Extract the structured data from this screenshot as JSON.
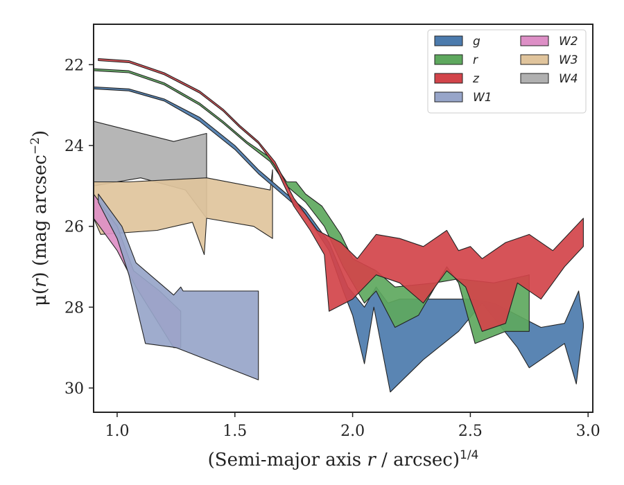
{
  "chart_data": {
    "type": "area",
    "xlabel": "(Semi-major axis r / arcsec)^1/4",
    "xlabel_parts": {
      "pre": "(Semi-major axis ",
      "var": "r",
      "post": " / arcsec)",
      "sup": "1/4"
    },
    "ylabel": "μ(r) (mag arcsec^−2)",
    "ylabel_parts": {
      "pre": "μ(",
      "var": "r",
      "mid": ") (mag arcsec",
      "sup": "−2",
      "post": ")"
    },
    "xlim": [
      0.9,
      3.02
    ],
    "ylim": [
      30.6,
      21.0
    ],
    "y_inverted": true,
    "xticks": [
      1.0,
      1.5,
      2.0,
      2.5,
      3.0
    ],
    "xtick_labels": [
      "1.0",
      "1.5",
      "2.0",
      "2.5",
      "3.0"
    ],
    "yticks": [
      22,
      24,
      26,
      28,
      30
    ],
    "ytick_labels": [
      "22",
      "24",
      "26",
      "28",
      "30"
    ],
    "grid": false,
    "legend_position": "top-right",
    "legend_columns": 2,
    "series": [
      {
        "name": "W4",
        "color": "#b0b0b0",
        "upper": [
          [
            0.9,
            23.4
          ],
          [
            1.24,
            23.9
          ],
          [
            1.38,
            23.7
          ]
        ],
        "lower": [
          [
            0.9,
            25.0
          ],
          [
            1.1,
            24.8
          ],
          [
            1.29,
            25.1
          ],
          [
            1.38,
            25.8
          ]
        ]
      },
      {
        "name": "W3",
        "color": "#e0c49c",
        "upper": [
          [
            0.9,
            24.9
          ],
          [
            1.05,
            24.9
          ],
          [
            1.38,
            24.8
          ],
          [
            1.65,
            25.1
          ],
          [
            1.66,
            24.6
          ]
        ],
        "lower": [
          [
            0.9,
            25.8
          ],
          [
            0.93,
            26.2
          ],
          [
            1.17,
            26.1
          ],
          [
            1.32,
            25.9
          ],
          [
            1.37,
            26.7
          ],
          [
            1.38,
            25.8
          ],
          [
            1.58,
            26.0
          ],
          [
            1.66,
            26.3
          ]
        ]
      },
      {
        "name": "W2",
        "color": "#dd8fc6",
        "upper": [
          [
            0.9,
            25.2
          ],
          [
            1.0,
            26.0
          ],
          [
            1.07,
            27.1
          ],
          [
            1.18,
            27.6
          ],
          [
            1.27,
            28.1
          ]
        ],
        "lower": [
          [
            0.9,
            25.8
          ],
          [
            1.0,
            26.6
          ],
          [
            1.08,
            27.5
          ],
          [
            1.24,
            29.0
          ],
          [
            1.27,
            29.0
          ]
        ]
      },
      {
        "name": "W1",
        "color": "#97a5c9",
        "upper": [
          [
            0.92,
            25.2
          ],
          [
            1.02,
            26.0
          ],
          [
            1.08,
            26.9
          ],
          [
            1.24,
            27.7
          ],
          [
            1.27,
            27.5
          ],
          [
            1.28,
            27.6
          ],
          [
            1.6,
            27.6
          ]
        ],
        "lower": [
          [
            0.92,
            25.4
          ],
          [
            1.0,
            26.3
          ],
          [
            1.05,
            27.2
          ],
          [
            1.12,
            28.9
          ],
          [
            1.25,
            29.0
          ],
          [
            1.6,
            29.8
          ]
        ]
      },
      {
        "name": "g",
        "color": "#4c7bad",
        "upper": [
          [
            0.9,
            22.55
          ],
          [
            1.05,
            22.6
          ],
          [
            1.2,
            22.85
          ],
          [
            1.35,
            23.3
          ],
          [
            1.5,
            24.0
          ],
          [
            1.6,
            24.6
          ],
          [
            1.7,
            25.1
          ],
          [
            1.8,
            25.6
          ],
          [
            1.9,
            26.4
          ],
          [
            1.98,
            27.5
          ],
          [
            2.05,
            28.0
          ],
          [
            2.1,
            27.5
          ],
          [
            2.15,
            27.9
          ],
          [
            2.2,
            27.8
          ],
          [
            2.4,
            27.8
          ],
          [
            2.5,
            27.8
          ],
          [
            2.6,
            27.9
          ],
          [
            2.7,
            28.2
          ],
          [
            2.8,
            28.5
          ],
          [
            2.9,
            28.4
          ],
          [
            2.96,
            27.6
          ],
          [
            2.98,
            28.4
          ]
        ],
        "lower": [
          [
            0.9,
            22.6
          ],
          [
            1.05,
            22.65
          ],
          [
            1.2,
            22.9
          ],
          [
            1.35,
            23.4
          ],
          [
            1.5,
            24.1
          ],
          [
            1.6,
            24.7
          ],
          [
            1.7,
            25.2
          ],
          [
            1.8,
            25.7
          ],
          [
            1.9,
            26.6
          ],
          [
            1.96,
            27.6
          ],
          [
            2.0,
            28.2
          ],
          [
            2.05,
            29.4
          ],
          [
            2.09,
            28.0
          ],
          [
            2.16,
            30.1
          ],
          [
            2.3,
            29.3
          ],
          [
            2.45,
            28.6
          ],
          [
            2.55,
            27.9
          ],
          [
            2.7,
            29.0
          ],
          [
            2.75,
            29.5
          ],
          [
            2.9,
            28.9
          ],
          [
            2.95,
            29.9
          ],
          [
            2.98,
            28.5
          ]
        ]
      },
      {
        "name": "r",
        "color": "#5ea85e",
        "upper": [
          [
            0.9,
            22.1
          ],
          [
            1.05,
            22.15
          ],
          [
            1.2,
            22.45
          ],
          [
            1.35,
            22.95
          ],
          [
            1.45,
            23.4
          ],
          [
            1.55,
            23.9
          ],
          [
            1.65,
            24.3
          ],
          [
            1.72,
            24.9
          ],
          [
            1.76,
            24.9
          ],
          [
            1.8,
            25.2
          ],
          [
            1.87,
            25.5
          ],
          [
            1.95,
            26.2
          ],
          [
            2.0,
            26.8
          ],
          [
            2.1,
            27.1
          ],
          [
            2.18,
            27.5
          ],
          [
            2.35,
            27.4
          ],
          [
            2.45,
            27.3
          ],
          [
            2.6,
            27.4
          ],
          [
            2.75,
            27.2
          ]
        ],
        "lower": [
          [
            0.9,
            22.15
          ],
          [
            1.05,
            22.2
          ],
          [
            1.2,
            22.5
          ],
          [
            1.35,
            23.0
          ],
          [
            1.45,
            23.45
          ],
          [
            1.55,
            23.95
          ],
          [
            1.65,
            24.4
          ],
          [
            1.72,
            25.0
          ],
          [
            1.8,
            25.4
          ],
          [
            1.88,
            26.0
          ],
          [
            1.96,
            27.0
          ],
          [
            2.05,
            27.9
          ],
          [
            2.1,
            27.6
          ],
          [
            2.18,
            28.5
          ],
          [
            2.28,
            28.2
          ],
          [
            2.4,
            27.0
          ],
          [
            2.45,
            27.4
          ],
          [
            2.52,
            28.9
          ],
          [
            2.65,
            28.6
          ],
          [
            2.75,
            28.6
          ]
        ]
      },
      {
        "name": "z",
        "color": "#d2444a",
        "upper": [
          [
            0.92,
            21.85
          ],
          [
            1.05,
            21.9
          ],
          [
            1.2,
            22.2
          ],
          [
            1.35,
            22.65
          ],
          [
            1.45,
            23.1
          ],
          [
            1.52,
            23.5
          ],
          [
            1.6,
            23.9
          ],
          [
            1.67,
            24.4
          ],
          [
            1.75,
            25.3
          ],
          [
            1.85,
            26.1
          ],
          [
            1.95,
            26.4
          ],
          [
            2.02,
            26.8
          ],
          [
            2.1,
            26.2
          ],
          [
            2.2,
            26.3
          ],
          [
            2.3,
            26.5
          ],
          [
            2.4,
            26.1
          ],
          [
            2.45,
            26.6
          ],
          [
            2.5,
            26.5
          ],
          [
            2.55,
            26.8
          ],
          [
            2.65,
            26.4
          ],
          [
            2.75,
            26.2
          ],
          [
            2.85,
            26.6
          ],
          [
            2.98,
            25.8
          ]
        ],
        "lower": [
          [
            0.92,
            21.9
          ],
          [
            1.05,
            21.95
          ],
          [
            1.2,
            22.25
          ],
          [
            1.35,
            22.7
          ],
          [
            1.45,
            23.15
          ],
          [
            1.52,
            23.55
          ],
          [
            1.6,
            23.95
          ],
          [
            1.67,
            24.5
          ],
          [
            1.75,
            25.5
          ],
          [
            1.82,
            26.1
          ],
          [
            1.88,
            26.7
          ],
          [
            1.9,
            28.1
          ],
          [
            2.0,
            27.8
          ],
          [
            2.1,
            27.2
          ],
          [
            2.2,
            27.4
          ],
          [
            2.3,
            27.9
          ],
          [
            2.4,
            27.1
          ],
          [
            2.48,
            27.5
          ],
          [
            2.55,
            28.6
          ],
          [
            2.65,
            28.4
          ],
          [
            2.7,
            27.4
          ],
          [
            2.8,
            27.8
          ],
          [
            2.9,
            27.0
          ],
          [
            2.98,
            26.5
          ]
        ]
      }
    ],
    "legend_order": [
      "g",
      "r",
      "z",
      "W1",
      "W2",
      "W3",
      "W4"
    ],
    "legend_labels": {
      "g": "g",
      "r": "r",
      "z": "z",
      "W1": "W1",
      "W2": "W2",
      "W3": "W3",
      "W4": "W4"
    }
  }
}
